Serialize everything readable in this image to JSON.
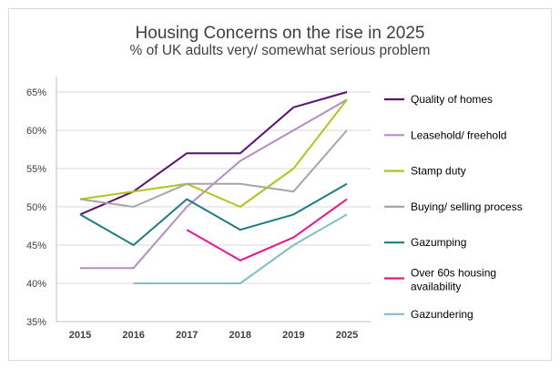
{
  "chart_data": {
    "type": "line",
    "title": "Housing Concerns on the rise in 2025",
    "subtitle": "% of UK adults very/ somewhat serious problem",
    "x": [
      "2015",
      "2016",
      "2017",
      "2018",
      "2019",
      "2025"
    ],
    "y_ticks": [
      "35%",
      "40%",
      "45%",
      "50%",
      "55%",
      "60%",
      "65%"
    ],
    "ylim": [
      35,
      67
    ],
    "grid": true,
    "legend_position": "right",
    "series": [
      {
        "name": "Quality of homes",
        "color": "#5c1170",
        "values": [
          49,
          52,
          57,
          57,
          63,
          65
        ]
      },
      {
        "name": "Leasehold/ freehold",
        "color": "#b58cc8",
        "values": [
          42,
          42,
          50,
          56,
          60,
          64
        ]
      },
      {
        "name": "Stamp duty",
        "color": "#b3c41a",
        "values": [
          51,
          52,
          53,
          50,
          55,
          64
        ]
      },
      {
        "name": "Buying/ selling process",
        "color": "#a6a6a6",
        "values": [
          51,
          50,
          53,
          53,
          52,
          60
        ]
      },
      {
        "name": "Gazumping",
        "color": "#1b7d84",
        "values": [
          49,
          45,
          51,
          47,
          49,
          53
        ]
      },
      {
        "name": "Over 60s housing availability",
        "color": "#e8158c",
        "values": [
          null,
          null,
          47,
          43,
          46,
          51
        ]
      },
      {
        "name": "Gazundering",
        "color": "#7fc0c8",
        "values": [
          null,
          40,
          40,
          40,
          45,
          49
        ]
      }
    ]
  }
}
